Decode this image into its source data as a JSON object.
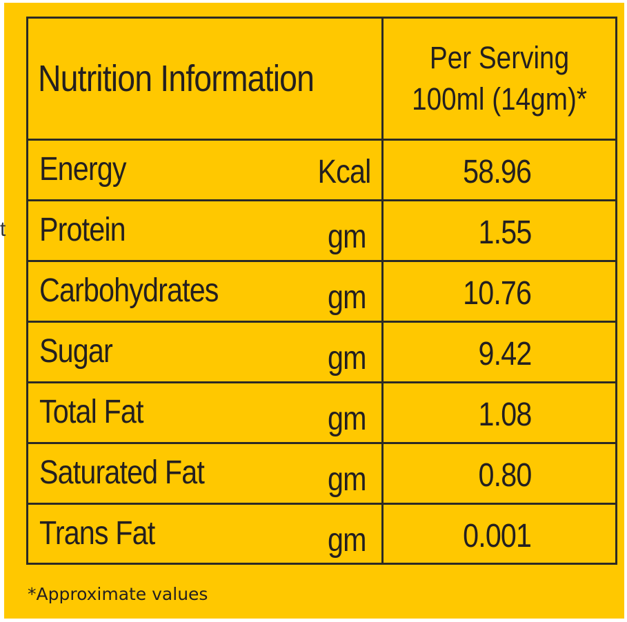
{
  "colors": {
    "background": "#FFC800",
    "text": "#231f20",
    "border": "#2b2a25"
  },
  "stray_mark": "t",
  "table": {
    "header": {
      "title": "Nutrition Information",
      "serving_line1": "Per Serving",
      "serving_line2": "100ml (14gm)*"
    },
    "rows": [
      {
        "name": "Energy",
        "unit": "Kcal",
        "value": "58.96"
      },
      {
        "name": "Protein",
        "unit": "gm",
        "value": "1.55"
      },
      {
        "name": "Carbohydrates",
        "unit": "gm",
        "value": "10.76"
      },
      {
        "name": "Sugar",
        "unit": "gm",
        "value": "9.42"
      },
      {
        "name": "Total Fat",
        "unit": "gm",
        "value": "1.08"
      },
      {
        "name": "Saturated Fat",
        "unit": "gm",
        "value": "0.80"
      },
      {
        "name": "Trans Fat",
        "unit": "gm",
        "value": "0.001"
      }
    ]
  },
  "footnote": "*Approximate values"
}
